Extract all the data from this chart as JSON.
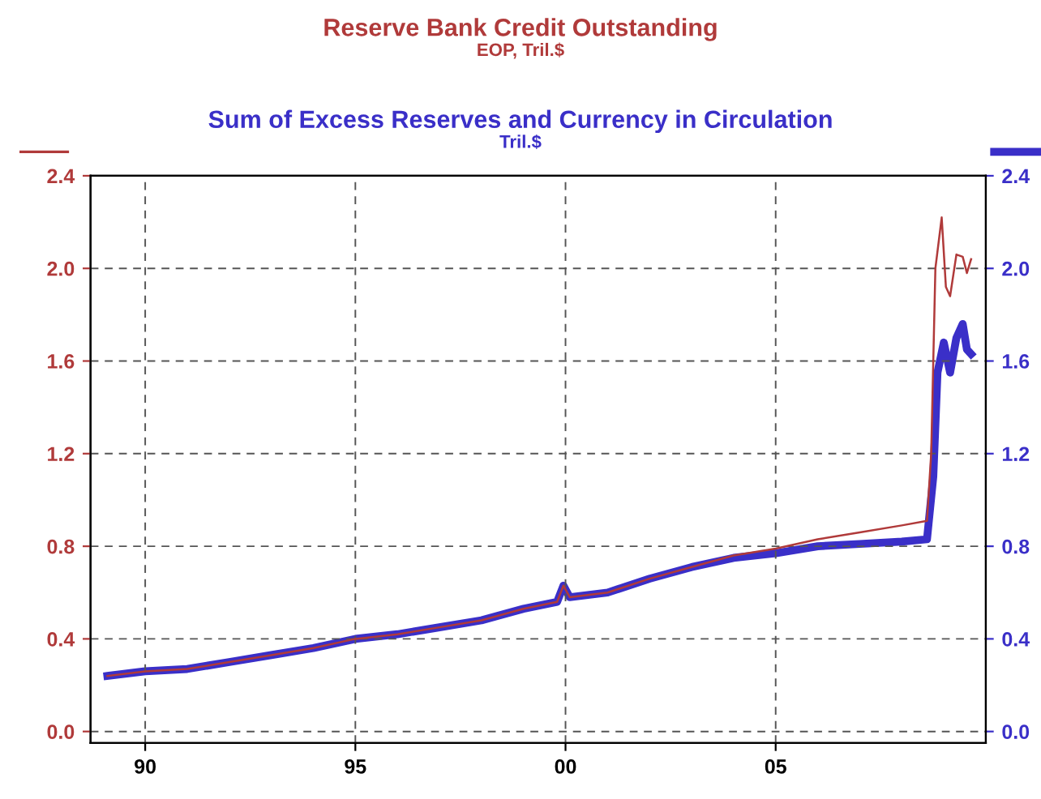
{
  "chart_data": {
    "type": "line",
    "annotations": [
      "EOP, Tril.$",
      "Tril.$"
    ],
    "legend": "top",
    "grid": true,
    "line_style": "solid",
    "xlim": [
      1988.7,
      2010
    ],
    "xticks": [
      {
        "value": 1990,
        "label": "90"
      },
      {
        "value": 1995,
        "label": "95"
      },
      {
        "value": 2000,
        "label": "00"
      },
      {
        "value": 2005,
        "label": "05"
      }
    ],
    "ylim": [
      -0.05,
      2.4
    ],
    "yticks": [
      {
        "value": 0,
        "label": "0.0"
      },
      {
        "value": 0.4,
        "label": "0.4"
      },
      {
        "value": 0.8,
        "label": "0.8"
      },
      {
        "value": 1.2,
        "label": "1.2"
      },
      {
        "value": 1.6,
        "label": "1.6"
      },
      {
        "value": 2,
        "label": "2.0"
      },
      {
        "value": 2.4,
        "label": "2.4"
      }
    ],
    "y2lim": [
      -0.05,
      2.4
    ],
    "y2ticks": [
      {
        "value": 0,
        "label": "0.0"
      },
      {
        "value": 0.4,
        "label": "0.4"
      },
      {
        "value": 0.8,
        "label": "0.8"
      },
      {
        "value": 1.2,
        "label": "1.2"
      },
      {
        "value": 1.6,
        "label": "1.6"
      },
      {
        "value": 2,
        "label": "2.0"
      },
      {
        "value": 2.4,
        "label": "2.4"
      }
    ],
    "series": [
      {
        "name": "Reserve Bank Credit Outstanding",
        "color": "#b03a3a",
        "x": [
          1989.1,
          1990,
          1991,
          1992,
          1993,
          1994,
          1995,
          1996,
          1997,
          1998,
          1999,
          1999.8,
          1999.95,
          2000.1,
          2001,
          2002,
          2003,
          2004,
          2005,
          2006,
          2007,
          2008,
          2008.6,
          2008.7,
          2008.8,
          2008.95,
          2009.05,
          2009.15,
          2009.3,
          2009.45,
          2009.55,
          2009.65
        ],
        "values": [
          0.24,
          0.26,
          0.27,
          0.3,
          0.33,
          0.36,
          0.4,
          0.42,
          0.45,
          0.48,
          0.53,
          0.56,
          0.63,
          0.58,
          0.6,
          0.66,
          0.71,
          0.76,
          0.79,
          0.83,
          0.86,
          0.89,
          0.91,
          1.2,
          2.0,
          2.22,
          1.92,
          1.88,
          2.06,
          2.05,
          1.98,
          2.04
        ]
      },
      {
        "name": "Sum of Excess Reserves and Currency in Circulation",
        "color": "#3a2fc8",
        "axis": "y2",
        "x": [
          1989.1,
          1990,
          1991,
          1992,
          1993,
          1994,
          1995,
          1996,
          1997,
          1998,
          1999,
          1999.8,
          1999.95,
          2000.1,
          2001,
          2002,
          2003,
          2004,
          2005,
          2006,
          2007,
          2008,
          2008.6,
          2008.75,
          2008.85,
          2009.0,
          2009.15,
          2009.3,
          2009.45,
          2009.55,
          2009.65
        ],
        "values": [
          0.24,
          0.26,
          0.27,
          0.3,
          0.33,
          0.36,
          0.4,
          0.42,
          0.45,
          0.48,
          0.53,
          0.56,
          0.63,
          0.58,
          0.6,
          0.66,
          0.71,
          0.75,
          0.77,
          0.8,
          0.81,
          0.82,
          0.83,
          1.1,
          1.55,
          1.68,
          1.55,
          1.7,
          1.76,
          1.65,
          1.63
        ]
      }
    ]
  }
}
